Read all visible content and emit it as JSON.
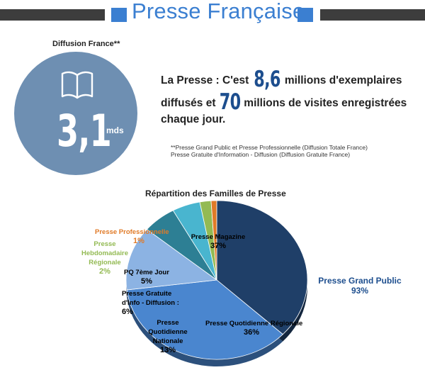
{
  "header": {
    "title": "Presse Française"
  },
  "circle": {
    "label": "Diffusion France**",
    "value": "3,1",
    "unit": "mds"
  },
  "statement": {
    "part1": "La Presse : C'est",
    "num1": "8,6",
    "part2": "millions d'exemplaires",
    "part3": "diffusés et",
    "num2": "70",
    "part4": "millions de visites enregistrées",
    "part5": "chaque jour."
  },
  "notes": {
    "line1": "**Presse Grand Public et Presse Professionnelle (Diffusion Totale France)",
    "line2": "Presse Gratuite d'Information - Diffusion (Diffusion Gratuite France)"
  },
  "chart_data": {
    "type": "pie",
    "title": "Répartition des Familles de Presse",
    "slices": [
      {
        "label": "Presse Magazine",
        "value": 37,
        "value_label": "37%",
        "color": "#1f3f68"
      },
      {
        "label": "Presse Quotidienne Régionale",
        "value": 36,
        "value_label": "36%",
        "color": "#4a86cf"
      },
      {
        "label": "Presse Quotidienne Nationale",
        "value": 13,
        "value_label": "13%",
        "color": "#8cb3e3"
      },
      {
        "label": "Presse Gratuite d'Info - Diffusion :",
        "value": 6,
        "value_label": "6%",
        "color": "#2d7f94"
      },
      {
        "label": "PQ 7ème Jour",
        "value": 5,
        "value_label": "5%",
        "color": "#49b5cf"
      },
      {
        "label": "Presse Hebdomadaire Régionale",
        "value": 2,
        "value_label": "2%",
        "color": "#93ba53"
      },
      {
        "label": "Presse Professionnelle",
        "value": 1,
        "value_label": "1%",
        "color": "#e07a27"
      }
    ],
    "group_annotation": {
      "label": "Presse Grand Public",
      "value_label": "93%",
      "color": "#1d4e8e"
    },
    "label_colors": {
      "inside": "#ffffff",
      "hebdo": "#93ba53",
      "pro": "#e07a27"
    }
  }
}
